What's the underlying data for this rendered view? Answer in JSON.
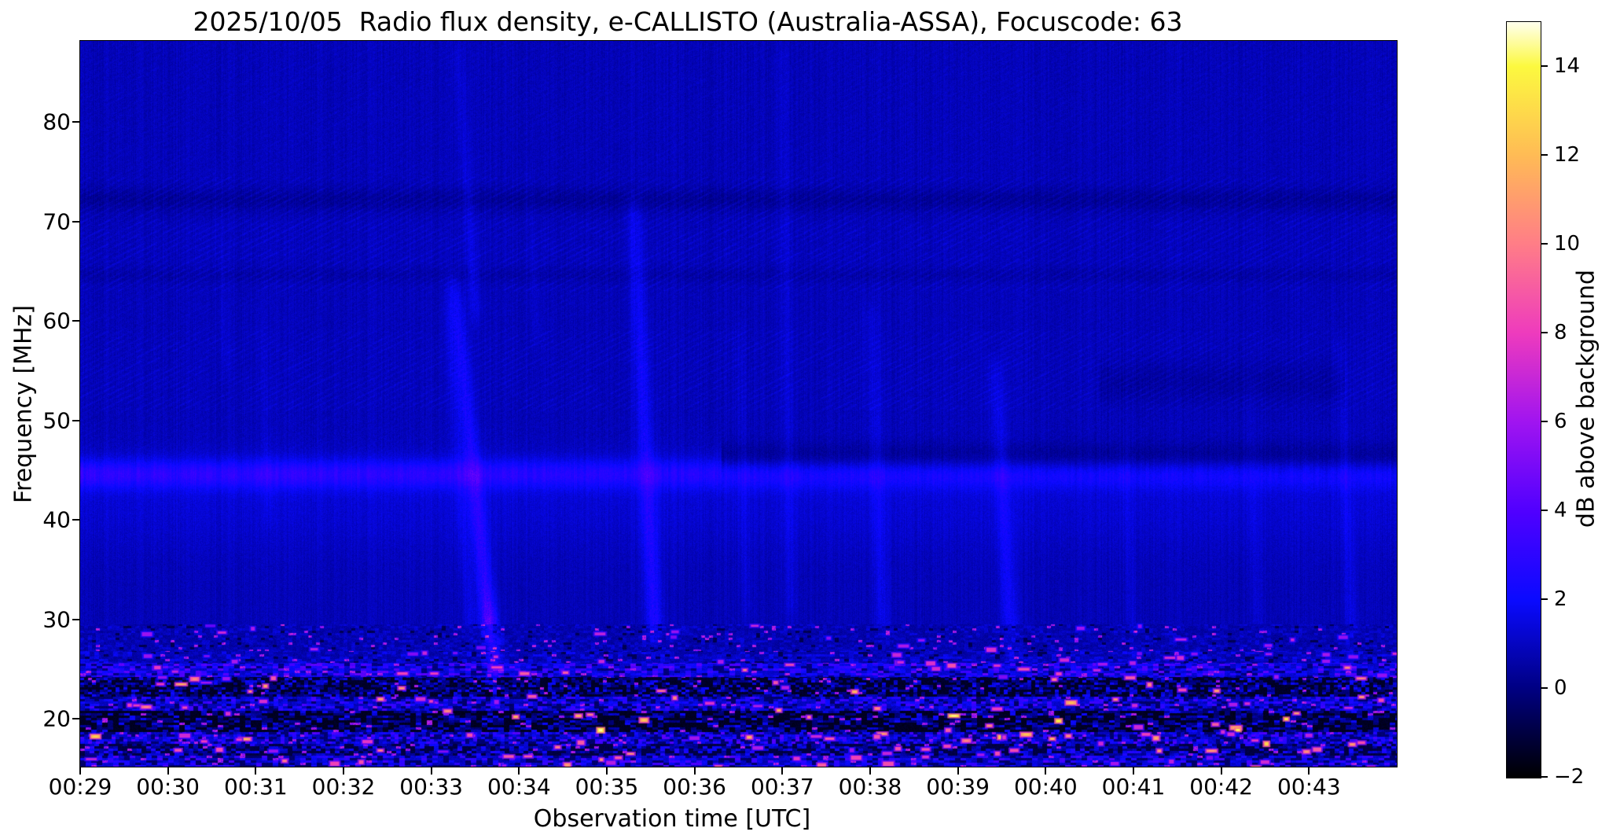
{
  "chart_data": {
    "type": "heatmap",
    "title": "2025/10/05  Radio flux density, e-CALLISTO (Australia-ASSA), Focuscode: 63",
    "xlabel": "Observation time [UTC]",
    "ylabel": "Frequency [MHz]",
    "x_ticks": [
      "00:29",
      "00:30",
      "00:31",
      "00:32",
      "00:33",
      "00:34",
      "00:35",
      "00:36",
      "00:37",
      "00:38",
      "00:39",
      "00:40",
      "00:41",
      "00:42",
      "00:43"
    ],
    "x_start_minutes": 29,
    "x_end_minutes": 44,
    "y_ticks": [
      80,
      70,
      60,
      50,
      40,
      30,
      20
    ],
    "freq_range_mhz": [
      15.2,
      88.15
    ],
    "grid": false,
    "legend_position": "none",
    "colorbar": {
      "label": "dB above background",
      "range": [
        -2,
        15
      ],
      "ticks": [
        14,
        12,
        10,
        8,
        6,
        4,
        2,
        0,
        -2
      ],
      "stops": [
        {
          "v": -2,
          "c": "#000000"
        },
        {
          "v": 0,
          "c": "#000082"
        },
        {
          "v": 2,
          "c": "#0a0aff"
        },
        {
          "v": 4,
          "c": "#5000ff"
        },
        {
          "v": 6,
          "c": "#a014f0"
        },
        {
          "v": 8,
          "c": "#ee3bbd"
        },
        {
          "v": 10,
          "c": "#ff7d87"
        },
        {
          "v": 12,
          "c": "#ffbb55"
        },
        {
          "v": 14,
          "c": "#fcf93f"
        },
        {
          "v": 15,
          "c": "#ffffee"
        }
      ]
    },
    "spectrogram": {
      "seed": 20251005,
      "background": {
        "base_db": 0.55,
        "noise_db": 0.6,
        "column_noise_db": 0.22
      },
      "diagonal_bands": [
        {
          "f_lo": 63,
          "f_hi": 74.5,
          "amp": 0.5
        },
        {
          "f_lo": 51,
          "f_hi": 59,
          "amp": 0.45
        },
        {
          "f_lo": 74.5,
          "f_hi": 88,
          "amp": 0.2
        },
        {
          "f_lo": 59,
          "f_hi": 63,
          "amp": 0.2
        },
        {
          "f_lo": 47,
          "f_hi": 51,
          "amp": 0.15
        }
      ],
      "dark_stripes": [
        {
          "f": 72.2,
          "sigma": 0.9,
          "amp": -0.55,
          "t0": 29,
          "t1": 44
        },
        {
          "f": 64.6,
          "sigma": 0.6,
          "amp": -0.3,
          "t0": 29,
          "t1": 44
        },
        {
          "f": 46.2,
          "sigma": 1.1,
          "amp": -0.8,
          "t0": 36.3,
          "t1": 44
        },
        {
          "f": 53.8,
          "sigma": 1.5,
          "amp": -0.4,
          "t0": 40.6,
          "t1": 43.4
        }
      ],
      "enhanced_band": {
        "f": 44.6,
        "sigma": 1.05,
        "amp_start": 1.9,
        "amp_end": 1.15,
        "pedestal": {
          "f": 41.5,
          "sigma": 3.2,
          "amp": 0.45
        }
      },
      "streaks": [
        {
          "t_hi": 30.55,
          "t_lo": 30.65,
          "f_lo": 55,
          "f_hi": 76,
          "sigma_s": 2.5,
          "amp": 0.35
        },
        {
          "t_hi": 31.05,
          "t_lo": 31.15,
          "f_lo": 40,
          "f_hi": 62,
          "sigma_s": 2.5,
          "amp": 0.3
        },
        {
          "t_hi": 33.18,
          "t_lo": 33.45,
          "f_lo": 28,
          "f_hi": 62,
          "sigma_s": 3,
          "amp": 0.7
        },
        {
          "t_hi": 33.25,
          "t_lo": 33.72,
          "f_lo": 24,
          "f_hi": 64,
          "sigma_s": 4,
          "amp": 2.1,
          "knot_f": 28.5,
          "knot_sigma": 2.5,
          "knot_amp": 1.6
        },
        {
          "t_hi": 33.3,
          "t_lo": 33.5,
          "f_lo": 60,
          "f_hi": 88,
          "sigma_s": 3,
          "amp": 0.7
        },
        {
          "t_hi": 34.1,
          "t_lo": 34.2,
          "f_lo": 58,
          "f_hi": 76,
          "sigma_s": 2.5,
          "amp": 0.3
        },
        {
          "t_hi": 35.3,
          "t_lo": 35.55,
          "f_lo": 27,
          "f_hi": 72,
          "sigma_s": 4,
          "amp": 1.7
        },
        {
          "t_hi": 36.5,
          "t_lo": 36.6,
          "f_lo": 30,
          "f_hi": 60,
          "sigma_s": 3,
          "amp": 0.45
        },
        {
          "t_hi": 37.0,
          "t_lo": 37.1,
          "f_lo": 30,
          "f_hi": 88,
          "sigma_s": 3,
          "amp": 0.6
        },
        {
          "t_hi": 38.0,
          "t_lo": 38.15,
          "f_lo": 28,
          "f_hi": 62,
          "sigma_s": 4,
          "amp": 0.8
        },
        {
          "t_hi": 39.42,
          "t_lo": 39.62,
          "f_lo": 25,
          "f_hi": 56,
          "sigma_s": 4,
          "amp": 1.3
        },
        {
          "t_hi": 40.9,
          "t_lo": 41.0,
          "f_lo": 25,
          "f_hi": 48,
          "sigma_s": 3,
          "amp": 0.45
        },
        {
          "t_hi": 42.3,
          "t_lo": 42.42,
          "f_lo": 28,
          "f_hi": 55,
          "sigma_s": 3,
          "amp": 0.4
        },
        {
          "t_hi": 43.35,
          "t_lo": 43.5,
          "f_lo": 24,
          "f_hi": 58,
          "sigma_s": 3,
          "amp": 0.8
        }
      ],
      "rfi_bands": [
        {
          "f_lo": 26.8,
          "f_hi": 29.5,
          "base": 0.55,
          "speckle": 0.5,
          "dark_frac": 0.05,
          "bright_n": 20,
          "bright_v": [
            4.5,
            7.5
          ]
        },
        {
          "f_lo": 25.6,
          "f_hi": 26.8,
          "base": 0.6,
          "speckle": 0.7,
          "dark_frac": 0.08,
          "bright_n": 26,
          "bright_v": [
            5,
            8
          ]
        },
        {
          "f_lo": 24.2,
          "f_hi": 25.6,
          "base": 1.2,
          "speckle": 1.7,
          "dark_frac": 0.18,
          "bright_n": 26,
          "bright_v": [
            5,
            10
          ]
        },
        {
          "f_lo": 22.2,
          "f_hi": 24.2,
          "base": -0.1,
          "speckle": 1.3,
          "dark_frac": 0.5,
          "bright_n": 18,
          "bright_v": [
            6,
            12
          ]
        },
        {
          "f_lo": 20.8,
          "f_hi": 22.2,
          "base": 0.9,
          "speckle": 1.5,
          "dark_frac": 0.25,
          "bright_n": 22,
          "bright_v": [
            6,
            11
          ]
        },
        {
          "f_lo": 18.7,
          "f_hi": 20.8,
          "base": -0.2,
          "speckle": 1.3,
          "dark_frac": 0.52,
          "bright_n": 18,
          "bright_v": [
            7,
            13.5
          ]
        },
        {
          "f_lo": 17.5,
          "f_hi": 18.7,
          "base": 1.0,
          "speckle": 1.7,
          "dark_frac": 0.28,
          "bright_n": 30,
          "bright_v": [
            6,
            12
          ]
        },
        {
          "f_lo": 16.3,
          "f_hi": 17.5,
          "base": 0.3,
          "speckle": 1.4,
          "dark_frac": 0.4,
          "bright_n": 24,
          "bright_v": [
            5,
            10
          ]
        },
        {
          "f_lo": 15.0,
          "f_hi": 16.3,
          "base": 0.9,
          "speckle": 1.6,
          "dark_frac": 0.25,
          "bright_n": 24,
          "bright_v": [
            5,
            10
          ]
        }
      ]
    }
  }
}
